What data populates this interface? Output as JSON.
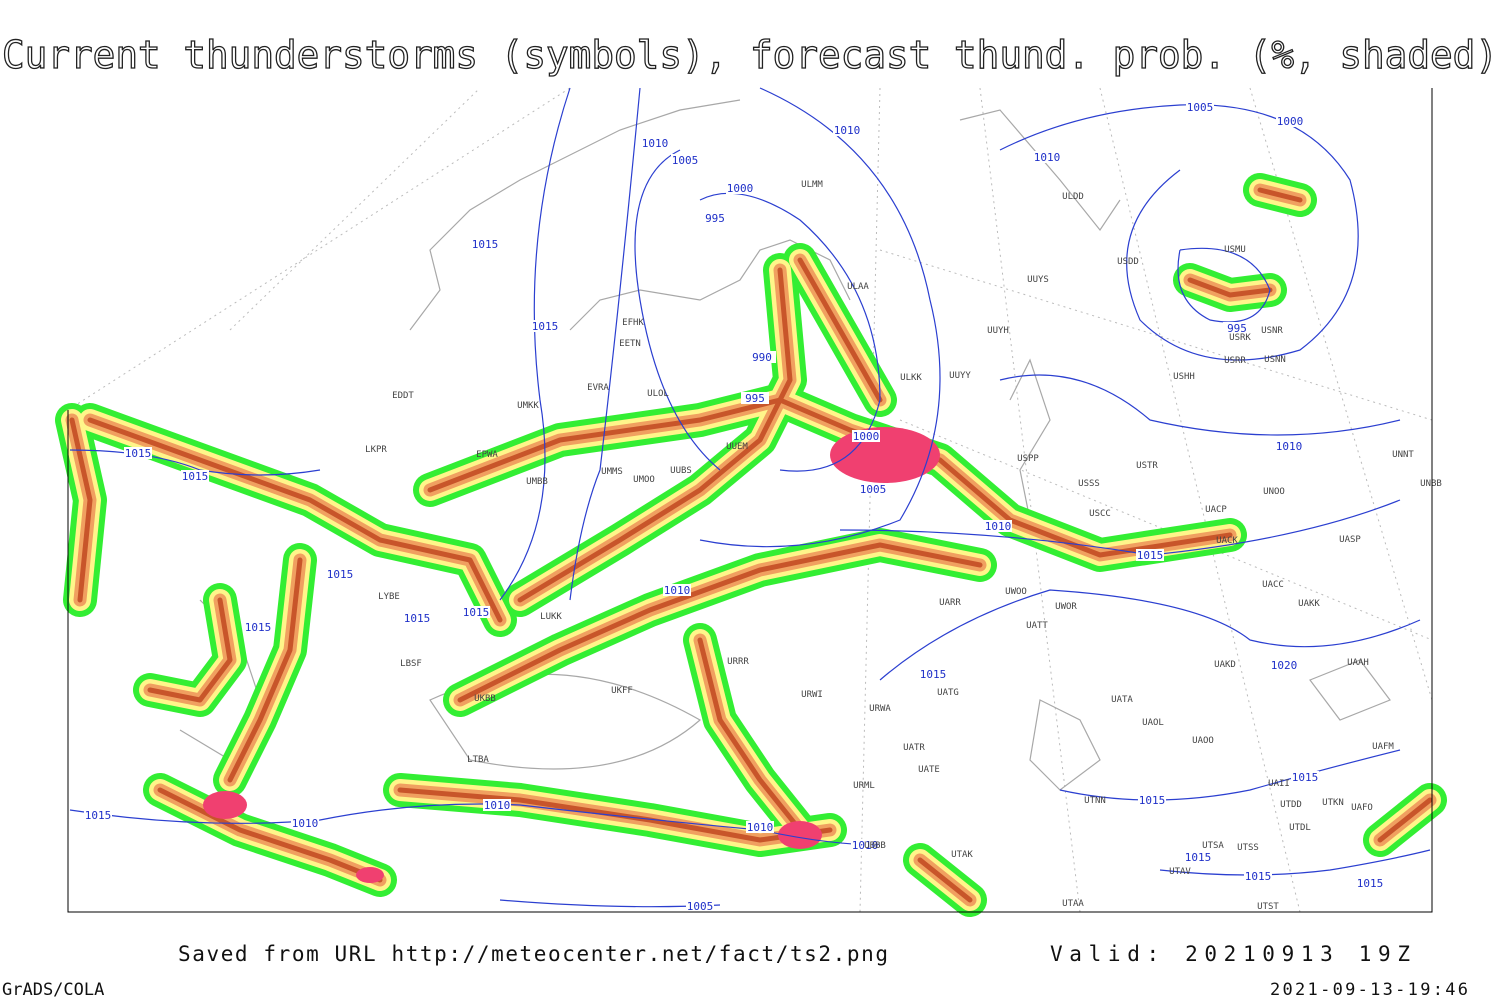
{
  "header": {
    "title": "Current thunderstorms (symbols), forecast thund. prob. (%, shaded)"
  },
  "map": {
    "isobar_labels": [
      "1010",
      "1005",
      "1000",
      "995",
      "1010",
      "1015",
      "1015",
      "990",
      "995",
      "1000",
      "1005",
      "1015",
      "1015",
      "1015",
      "1015",
      "1015",
      "1015",
      "1010",
      "1010",
      "1015",
      "1015",
      "1020",
      "1005",
      "1000",
      "1010",
      "995",
      "1010",
      "1015",
      "1015",
      "1015",
      "1010",
      "1010",
      "1010",
      "1010",
      "1005",
      "1015",
      "1015",
      "1015"
    ],
    "stations": [
      "ULMM",
      "ULDD",
      "UUYS",
      "USDD",
      "USMU",
      "ULAA",
      "UUYH",
      "USRK",
      "USNR",
      "USHH",
      "USRR",
      "USNN",
      "ULKK",
      "UUYY",
      "EFHK",
      "EETN",
      "EVRA",
      "ULOL",
      "EDDT",
      "UMKK",
      "LKPR",
      "EPWA",
      "UMMS",
      "UMOO",
      "UUBS",
      "UUEM",
      "UMBB",
      "USPP",
      "USSS",
      "USTR",
      "UNOO",
      "UNNT",
      "UNBB",
      "USCC",
      "UACP",
      "UACK",
      "UASP",
      "LYBE",
      "LUKK",
      "LBSF",
      "UACC",
      "UAKK",
      "UARR",
      "UWOO",
      "UWOR",
      "UATT",
      "UAKD",
      "UAAH",
      "UATG",
      "UATA",
      "UAOL",
      "UAOO",
      "UAFM",
      "UAII",
      "UTDD",
      "UTKN",
      "UAFO",
      "UTDL",
      "UTNN",
      "UTSA",
      "UTSS",
      "UTAV",
      "UTAK",
      "UBBB",
      "UTAA",
      "UTST",
      "UATE",
      "UATR",
      "URWA",
      "URWI",
      "URRR",
      "URML",
      "UKBB",
      "LTBA",
      "UKFF"
    ]
  },
  "footer": {
    "source": "Saved from URL http://meteocenter.net/fact/ts2.png",
    "valid": "Valid: 20210913 19Z",
    "software": "GrADS/COLA",
    "timestamp": "2021-09-13-19:46"
  }
}
